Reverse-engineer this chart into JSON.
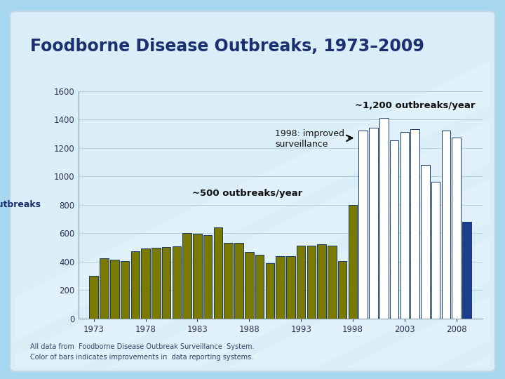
{
  "title": "Foodborne Disease Outbreaks, 1973–2009",
  "ylabel": "Outbreaks",
  "footnote1": "All data from  Foodborne Disease Outbreak Surveillance  System.",
  "footnote2": "Color of bars indicates improvements in  data reporting systems.",
  "annotation1_text": "~1,200 outbreaks/year",
  "annotation2_text": "1998: improved\nsurveillance",
  "annotation3_text": "~500 outbreaks/year",
  "years": [
    1973,
    1974,
    1975,
    1976,
    1977,
    1978,
    1979,
    1980,
    1981,
    1982,
    1983,
    1984,
    1985,
    1986,
    1987,
    1988,
    1989,
    1990,
    1991,
    1992,
    1993,
    1994,
    1995,
    1996,
    1997,
    1998,
    1999,
    2000,
    2001,
    2002,
    2003,
    2004,
    2005,
    2006,
    2007,
    2008,
    2009
  ],
  "values": [
    300,
    425,
    415,
    405,
    470,
    490,
    495,
    500,
    505,
    600,
    595,
    585,
    640,
    530,
    530,
    465,
    445,
    390,
    440,
    440,
    510,
    510,
    520,
    510,
    405,
    800,
    1320,
    1340,
    1410,
    1250,
    1310,
    1330,
    1080,
    960,
    1320,
    1270,
    680
  ],
  "bar_colors_type": [
    "olive",
    "olive",
    "olive",
    "olive",
    "olive",
    "olive",
    "olive",
    "olive",
    "olive",
    "olive",
    "olive",
    "olive",
    "olive",
    "olive",
    "olive",
    "olive",
    "olive",
    "olive",
    "olive",
    "olive",
    "olive",
    "olive",
    "olive",
    "olive",
    "olive",
    "olive",
    "white",
    "white",
    "white",
    "white",
    "white",
    "white",
    "white",
    "white",
    "white",
    "white",
    "navy"
  ],
  "olive_color": "#7a7a00",
  "white_color": "#FFFFFF",
  "navy_color": "#1a3f8f",
  "bar_edge_color": "#1a3a6a",
  "outer_bg": "#a8d8f0",
  "inner_bg": "#daeef8",
  "title_color": "#1a3070",
  "ylabel_color": "#1a3070",
  "tick_color": "#333355",
  "grid_color": "#b0c8d8",
  "ylim": [
    0,
    1600
  ],
  "yticks": [
    0,
    200,
    400,
    600,
    800,
    1000,
    1200,
    1400,
    1600
  ],
  "xtick_labels": [
    "1973",
    "1978",
    "1983",
    "1988",
    "1993",
    "1998",
    "2003",
    "2008"
  ],
  "xtick_years": [
    1973,
    1978,
    1983,
    1988,
    1993,
    1998,
    2003,
    2008
  ]
}
